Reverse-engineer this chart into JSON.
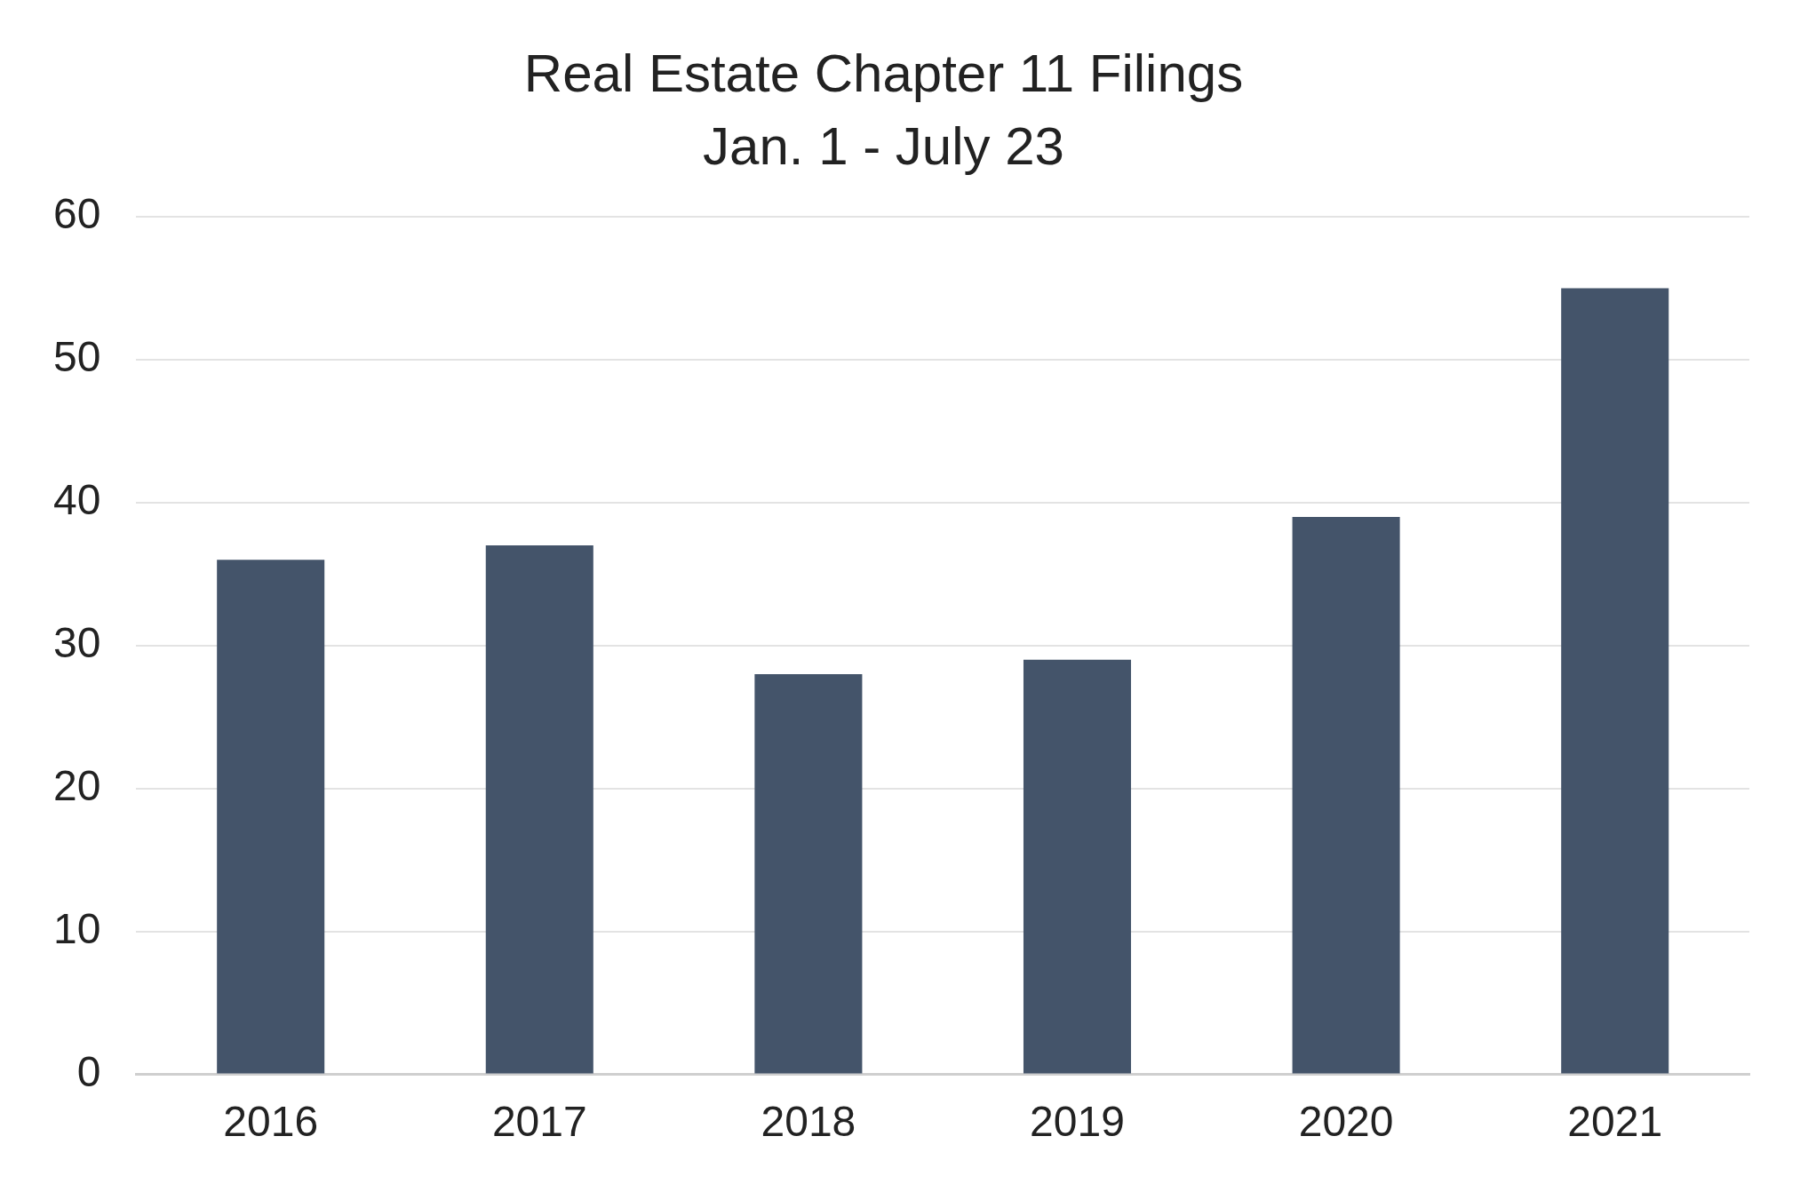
{
  "chart_data": {
    "type": "bar",
    "title": "Real Estate Chapter 11 Filings",
    "subtitle": "Jan. 1 - July 23",
    "categories": [
      "2016",
      "2017",
      "2018",
      "2019",
      "2020",
      "2021"
    ],
    "values": [
      36,
      37,
      28,
      29,
      39,
      55
    ],
    "color": "#44546a",
    "ylim": [
      0,
      60
    ],
    "yticks": [
      0,
      10,
      20,
      30,
      40,
      50,
      60
    ],
    "grid": "y",
    "legend": false
  }
}
